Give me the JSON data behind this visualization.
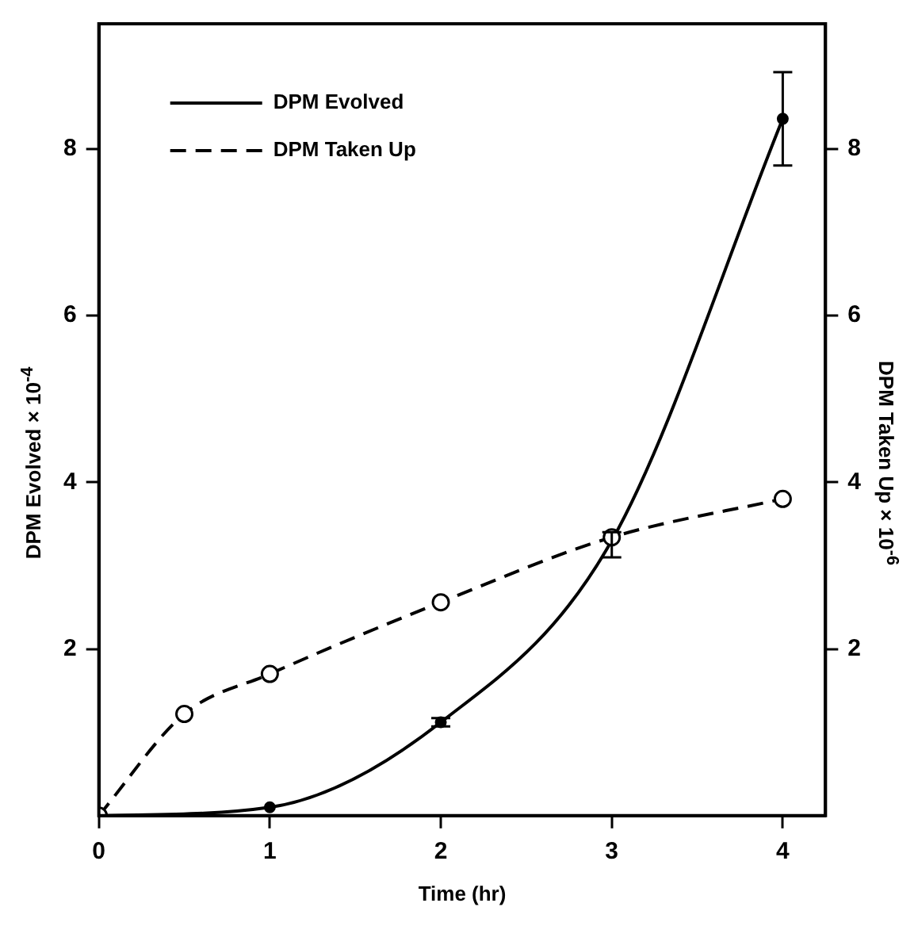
{
  "chart_data": {
    "type": "line",
    "xlabel": "Time (hr)",
    "ylabel": "DPM Evolved × 10$^{-4}$",
    "y2label": "DPM Taken Up × 10$^{-6}$",
    "xlim": [
      0,
      4.25
    ],
    "xticks": [
      0,
      1,
      2,
      3,
      4
    ],
    "ylim": [
      0,
      9.5
    ],
    "yticks": [
      2,
      4,
      6,
      8
    ],
    "y2lim": [
      0,
      9.5
    ],
    "y2ticks": [
      2,
      4,
      6,
      8
    ],
    "grid": false,
    "legend": "top left",
    "marker": "circle",
    "series": [
      {
        "name": "DPM Evolved",
        "color": "#000000",
        "line_style": "solid",
        "x": [
          0,
          1,
          2,
          3,
          4
        ],
        "values": [
          0,
          0.1,
          1.12,
          3.3,
          8.36
        ],
        "errors": [
          null,
          null,
          0.05,
          [
            3.1,
            3.4
          ],
          [
            7.8,
            8.92
          ]
        ]
      },
      {
        "name": "DPM Taken Up",
        "color": "#000000",
        "line_style": "dashed",
        "axis": "y2",
        "x": [
          0,
          0.5,
          1,
          2,
          3,
          4
        ],
        "values": [
          0,
          1.22,
          1.7,
          2.56,
          3.34,
          3.8
        ]
      }
    ]
  }
}
